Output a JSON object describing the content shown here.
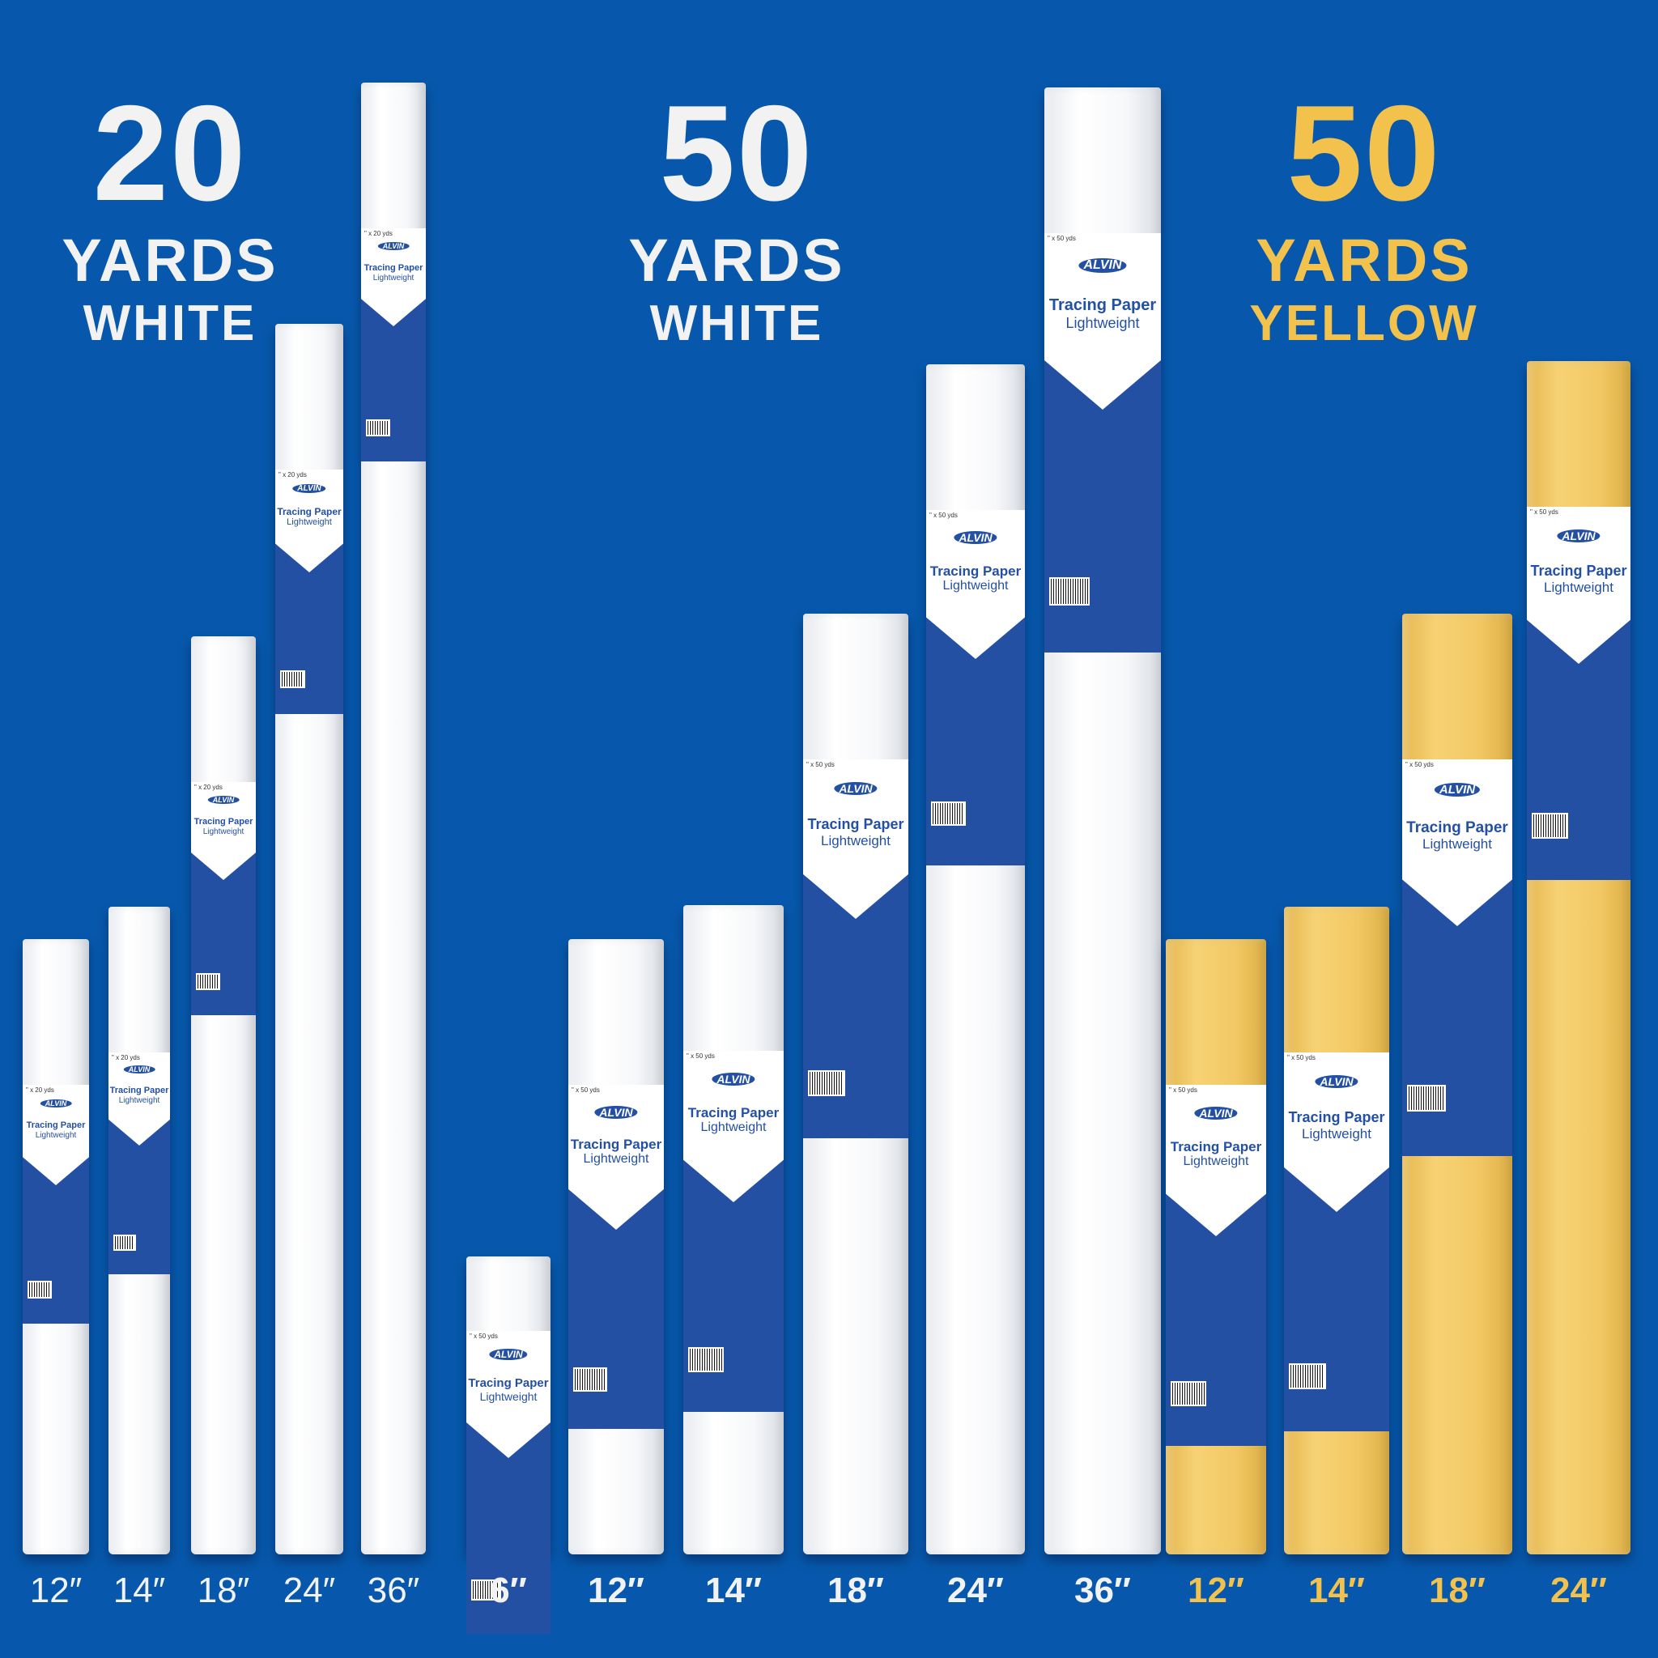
{
  "groups": [
    {
      "quantity": "20",
      "unit": "YARDS",
      "color_name": "WHITE",
      "text_color": "#f2f2f2",
      "roll_color": "white",
      "label_spec": "\" x 20 yds",
      "rolls": [
        {
          "size": "12″"
        },
        {
          "size": "14″"
        },
        {
          "size": "18″"
        },
        {
          "size": "24″"
        },
        {
          "size": "36″"
        }
      ]
    },
    {
      "quantity": "50",
      "unit": "YARDS",
      "color_name": "WHITE",
      "text_color": "#f2f2f2",
      "roll_color": "white",
      "label_spec": "\" x 50 yds",
      "rolls": [
        {
          "size": "6″"
        },
        {
          "size": "12″"
        },
        {
          "size": "14″"
        },
        {
          "size": "18″"
        },
        {
          "size": "24″"
        },
        {
          "size": "36″"
        }
      ]
    },
    {
      "quantity": "50",
      "unit": "YARDS",
      "color_name": "YELLOW",
      "text_color": "#f2c24d",
      "roll_color": "yellow",
      "label_spec": "\" x 50 yds",
      "rolls": [
        {
          "size": "12″"
        },
        {
          "size": "14″"
        },
        {
          "size": "18″"
        },
        {
          "size": "24″"
        }
      ]
    }
  ],
  "label": {
    "brand": "ALVIN",
    "title": "Tracing Paper",
    "subtitle": "Lightweight"
  }
}
